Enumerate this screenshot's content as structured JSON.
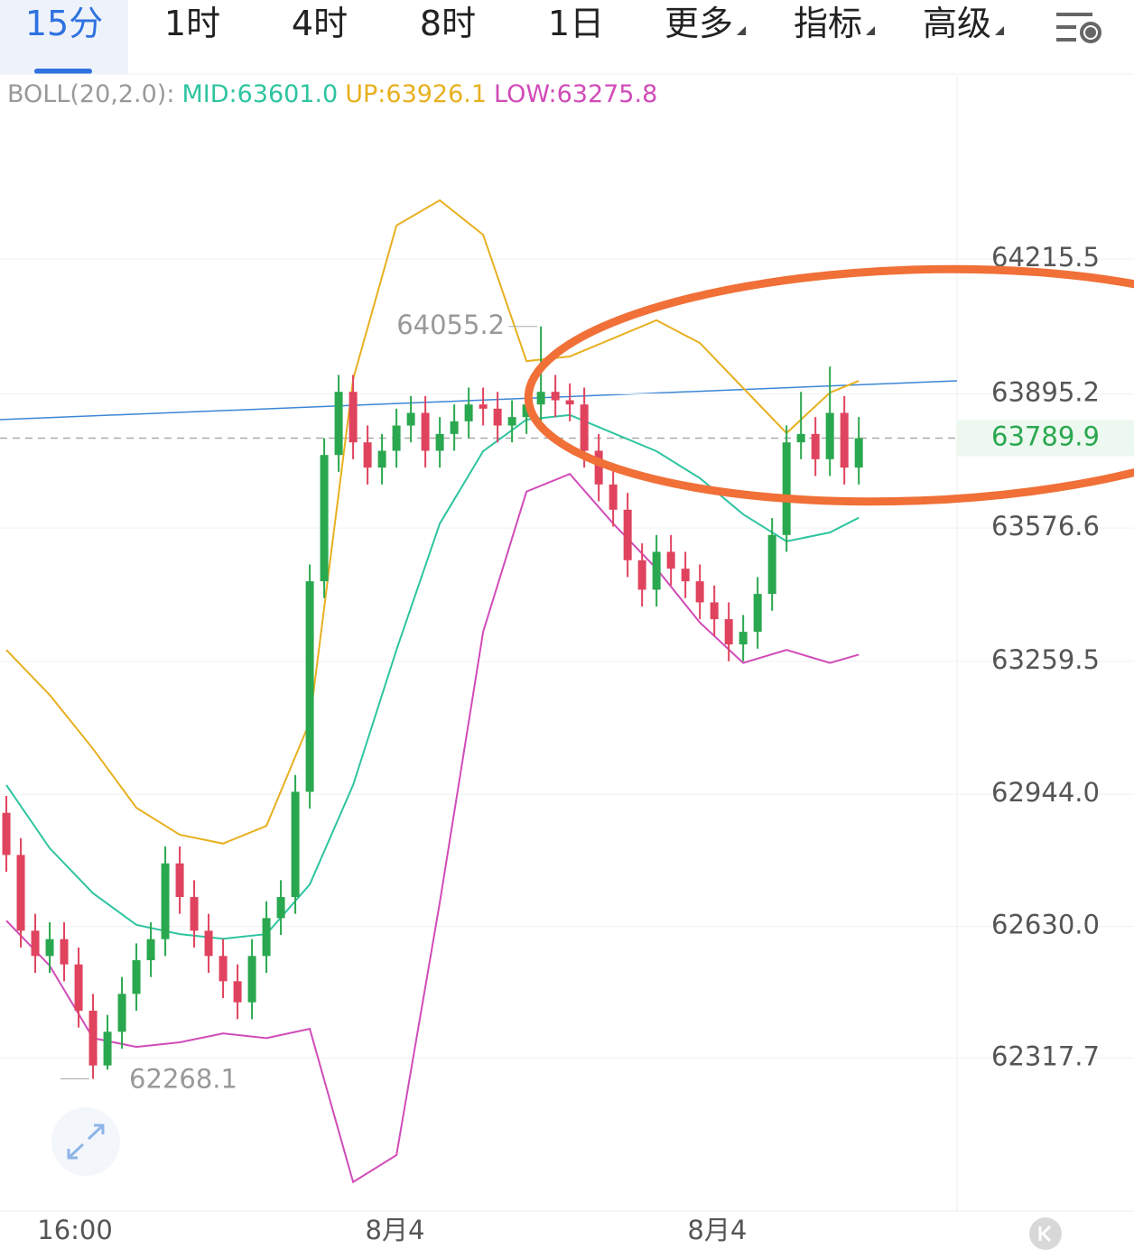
{
  "tabs": [
    "15分",
    "1时",
    "4时",
    "8时",
    "1日",
    "更多",
    "指标",
    "高级"
  ],
  "chart_data": {
    "type": "candlestick",
    "indicator_label": "BOLL(20,2.0):",
    "open": [
      62900,
      62800,
      62620,
      62560,
      62600,
      62540,
      62430,
      62300,
      62380,
      62470,
      62550,
      62600,
      62780,
      62700,
      62620,
      62560,
      62500,
      62450,
      62560,
      62650,
      62700,
      62950,
      63450,
      63750,
      63900,
      63780,
      63720,
      63760,
      63820,
      63850,
      63760,
      63800,
      63830,
      63870,
      63860,
      63820,
      63840,
      63870,
      63900,
      63880,
      63870,
      63760,
      63680,
      63620,
      63500,
      63430,
      63520,
      63480,
      63450,
      63400,
      63360,
      63300,
      63330,
      63420,
      63560,
      63780,
      63800,
      63740,
      63850,
      63720
    ],
    "high": [
      62940,
      62840,
      62660,
      62640,
      62640,
      62580,
      62470,
      62420,
      62510,
      62590,
      62640,
      62820,
      62820,
      62740,
      62660,
      62600,
      62540,
      62600,
      62690,
      62740,
      62990,
      63490,
      63790,
      63940,
      63940,
      63820,
      63800,
      63860,
      63890,
      63890,
      63840,
      63870,
      63910,
      63910,
      63900,
      63880,
      63910,
      64055.2,
      63940,
      63920,
      63910,
      63800,
      63720,
      63660,
      63540,
      63560,
      63560,
      63520,
      63490,
      63440,
      63400,
      63370,
      63460,
      63600,
      63820,
      63900,
      63840,
      63960,
      63890,
      63840
    ],
    "low": [
      62760,
      62580,
      62520,
      62520,
      62500,
      62390,
      62268.1,
      62290,
      62340,
      62430,
      62510,
      62560,
      62660,
      62580,
      62520,
      62460,
      62410,
      62410,
      62520,
      62610,
      62660,
      62910,
      63410,
      63710,
      63740,
      63680,
      63680,
      63720,
      63780,
      63720,
      63720,
      63760,
      63790,
      63820,
      63780,
      63780,
      63800,
      63830,
      63840,
      63830,
      63720,
      63640,
      63580,
      63460,
      63390,
      63390,
      63440,
      63410,
      63360,
      63320,
      63260,
      63260,
      63290,
      63380,
      63520,
      63740,
      63700,
      63700,
      63680,
      63680
    ],
    "close": [
      62800,
      62620,
      62560,
      62600,
      62540,
      62430,
      62300,
      62380,
      62470,
      62550,
      62600,
      62780,
      62700,
      62620,
      62560,
      62500,
      62450,
      62560,
      62650,
      62700,
      62950,
      63450,
      63750,
      63900,
      63780,
      63720,
      63760,
      63820,
      63850,
      63760,
      63800,
      63830,
      63870,
      63860,
      63820,
      63840,
      63870,
      63900,
      63880,
      63870,
      63760,
      63680,
      63620,
      63500,
      63430,
      63520,
      63480,
      63450,
      63400,
      63360,
      63300,
      63330,
      63420,
      63560,
      63780,
      63800,
      63740,
      63850,
      63720,
      63789.9
    ],
    "up_color": "#2aa84f",
    "down_color": "#e0435e",
    "series": [
      {
        "name": "MID",
        "legend_label": "MID:63601.0",
        "color": "#2ec4a0",
        "x": [
          0,
          3,
          6,
          9,
          12,
          15,
          18,
          21,
          24,
          27,
          30,
          33,
          36,
          39,
          42,
          45,
          48,
          51,
          54,
          57,
          59
        ],
        "values": [
          62966,
          62816,
          62709,
          62634,
          62612,
          62601,
          62612,
          62730,
          62966,
          63287,
          63587,
          63759,
          63834,
          63845,
          63802,
          63759,
          63695,
          63609,
          63545,
          63566,
          63601.0
        ]
      },
      {
        "name": "UP",
        "legend_label": "UP:63926.1",
        "color": "#e8b020",
        "x": [
          0,
          3,
          6,
          9,
          12,
          15,
          18,
          21,
          24,
          27,
          30,
          33,
          36,
          39,
          42,
          45,
          48,
          51,
          54,
          57,
          59
        ],
        "values": [
          63287,
          63180,
          63052,
          62912,
          62848,
          62827,
          62869,
          63116,
          63930,
          64295,
          64355,
          64273,
          63973,
          63984,
          64027,
          64070,
          64016,
          63909,
          63802,
          63898,
          63926.1
        ]
      },
      {
        "name": "LOW",
        "legend_label": "LOW:63275.8",
        "color": "#d14bb8",
        "x": [
          0,
          3,
          6,
          9,
          12,
          15,
          18,
          21,
          24,
          27,
          30,
          33,
          36,
          39,
          42,
          45,
          48,
          51,
          54,
          57,
          59
        ],
        "values": [
          62644,
          62537,
          62365,
          62344,
          62355,
          62376,
          62365,
          62387,
          62023,
          62087,
          62687,
          63330,
          63663,
          63705,
          63587,
          63480,
          63352,
          63256,
          63287,
          63256,
          63275.8
        ]
      }
    ],
    "annotations": [
      {
        "label": "64055.2",
        "value": 64055.2,
        "x": 37
      },
      {
        "label": "62268.1",
        "value": 62268.1,
        "x": 6
      }
    ],
    "current_price": {
      "value": 63789.9,
      "label": "63789.9"
    },
    "ylim": [
      61958.4,
      64648.5
    ],
    "yticks": [
      64215.5,
      63895.2,
      63576.6,
      63259.5,
      {
        "value": 62944.0,
        "label": "62944.0"
      },
      {
        "value": 62630.0,
        "label": "62630.0"
      },
      62317.7
    ],
    "xlim": [
      -0.44,
      65.8
    ],
    "xticks": [
      {
        "value": 4.75,
        "label": "16:00"
      },
      {
        "value": 26.9,
        "label": "8月4"
      },
      {
        "value": 49.2,
        "label": "8月4"
      }
    ],
    "grid": true
  }
}
